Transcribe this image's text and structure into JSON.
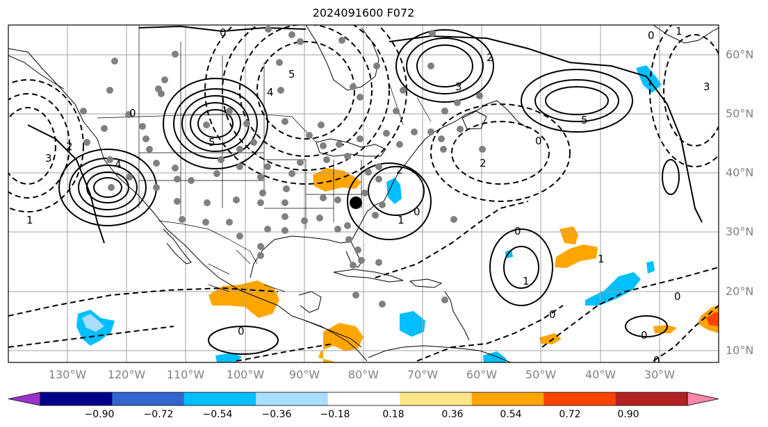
{
  "title": "2024091600 F072",
  "latitude_labels": [
    "60°N",
    "50°N",
    "40°N",
    "30°N",
    "20°N",
    "10°N"
  ],
  "longitude_labels": [
    "130°W",
    "120°W",
    "110°W",
    "100°W",
    "90°W",
    "80°W",
    "70°W",
    "60°W",
    "50°W",
    "40°W",
    "30°W"
  ],
  "colorbar": {
    "ticks": [
      "−0.90",
      "−0.72",
      "−0.54",
      "−0.36",
      "−0.18",
      "0.18",
      "0.36",
      "0.54",
      "0.72",
      "0.90"
    ],
    "colors": [
      "#9933cc",
      "#00008b",
      "#3366cc",
      "#00bfff",
      "#aadeff",
      "#ffffff",
      "#fde68a",
      "#ffa500",
      "#ff4500",
      "#b22222",
      "#ff88aa"
    ]
  },
  "contour_labels": [
    "0",
    "2",
    "3",
    "5",
    "4",
    "1",
    "0",
    "2",
    "3",
    "5",
    "0",
    "1",
    "2",
    "0",
    "3",
    "5",
    "4",
    "0",
    "2",
    "1",
    "0",
    "1",
    "0",
    "1",
    "0",
    "0",
    "0",
    "0"
  ],
  "observation_marker": "single black station dot near 80°W 35°N; grey dots show surrounding stations",
  "shading_colors": {
    "orange": "#ffa500",
    "blue": "#00bfff",
    "red": "#ff4500"
  }
}
